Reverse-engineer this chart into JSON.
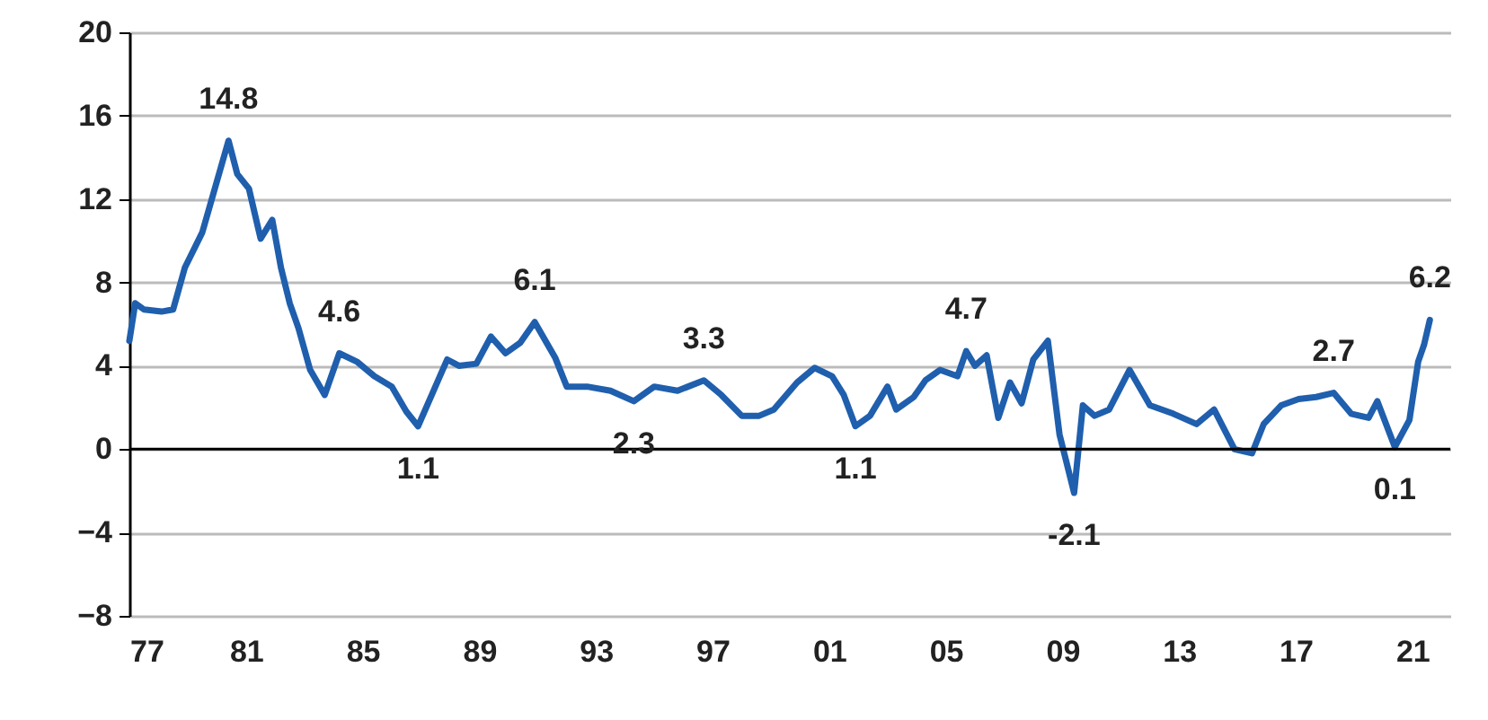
{
  "chart_data": {
    "type": "line",
    "x": [
      1977.0,
      1977.2,
      1977.5,
      1978.1,
      1978.5,
      1978.9,
      1979.5,
      1980.4,
      1980.7,
      1981.1,
      1981.5,
      1981.9,
      1982.2,
      1982.5,
      1982.8,
      1983.2,
      1983.7,
      1984.2,
      1984.8,
      1985.4,
      1986.0,
      1986.5,
      1986.9,
      1987.4,
      1987.9,
      1988.3,
      1988.9,
      1989.4,
      1989.9,
      1990.4,
      1990.9,
      1991.6,
      1992.0,
      1992.7,
      1993.5,
      1994.3,
      1995.0,
      1995.8,
      1996.7,
      1997.3,
      1998.0,
      1998.6,
      1999.1,
      1999.9,
      2000.5,
      2001.1,
      2001.5,
      2001.9,
      2002.4,
      2003.0,
      2003.3,
      2003.9,
      2004.3,
      2004.8,
      2005.4,
      2005.7,
      2006.0,
      2006.4,
      2006.8,
      2007.2,
      2007.6,
      2008.0,
      2008.5,
      2008.9,
      2009.4,
      2009.7,
      2010.1,
      2010.6,
      2011.3,
      2012.0,
      2012.8,
      2013.6,
      2014.2,
      2014.9,
      2015.5,
      2015.9,
      2016.5,
      2017.1,
      2017.7,
      2018.3,
      2018.9,
      2019.5,
      2019.8,
      2020.4,
      2020.9,
      2021.2,
      2021.4,
      2021.6
    ],
    "series": [
      {
        "color": "#1f5fad",
        "values": [
          5.2,
          7.0,
          6.7,
          6.6,
          6.7,
          8.7,
          10.4,
          14.8,
          13.2,
          12.5,
          10.1,
          11.0,
          8.7,
          7.0,
          5.8,
          3.8,
          2.6,
          4.6,
          4.2,
          3.5,
          3.0,
          1.8,
          1.1,
          2.7,
          4.3,
          4.0,
          4.1,
          5.4,
          4.6,
          5.1,
          6.1,
          4.4,
          3.0,
          3.0,
          2.8,
          2.3,
          3.0,
          2.8,
          3.3,
          2.6,
          1.6,
          1.6,
          1.9,
          3.2,
          3.9,
          3.5,
          2.6,
          1.1,
          1.6,
          3.0,
          1.9,
          2.5,
          3.3,
          3.8,
          3.5,
          4.7,
          4.0,
          4.5,
          1.5,
          3.2,
          2.2,
          4.3,
          5.2,
          0.7,
          -2.1,
          2.1,
          1.6,
          1.9,
          3.8,
          2.1,
          1.7,
          1.2,
          1.9,
          0.0,
          -0.2,
          1.2,
          2.1,
          2.4,
          2.5,
          2.7,
          1.7,
          1.5,
          2.3,
          0.1,
          1.4,
          4.2,
          5.0,
          6.2
        ]
      }
    ],
    "xlim": [
      1977,
      2022.3
    ],
    "xticks": [
      {
        "value": 1977,
        "label": "77"
      },
      {
        "value": 1981,
        "label": "81"
      },
      {
        "value": 1985,
        "label": "85"
      },
      {
        "value": 1989,
        "label": "89"
      },
      {
        "value": 1993,
        "label": "93"
      },
      {
        "value": 1997,
        "label": "97"
      },
      {
        "value": 2001,
        "label": "01"
      },
      {
        "value": 2005,
        "label": "05"
      },
      {
        "value": 2009,
        "label": "09"
      },
      {
        "value": 2013,
        "label": "13"
      },
      {
        "value": 2017,
        "label": "17"
      },
      {
        "value": 2021,
        "label": "21"
      }
    ],
    "ylim": [
      -8,
      20
    ],
    "yticks": [
      -8,
      -4,
      0,
      4,
      8,
      12,
      16,
      20
    ],
    "grid": "y",
    "ref_lines": [
      {
        "axis": "y",
        "value": 0,
        "color": "#000000"
      }
    ],
    "annotations": [
      {
        "text": "14.8",
        "x": 1980.4,
        "y": 14.8
      },
      {
        "text": "4.6",
        "x": 1984.2,
        "y": 4.6
      },
      {
        "text": "1.1",
        "x": 1986.9,
        "y": 1.1
      },
      {
        "text": "6.1",
        "x": 1990.9,
        "y": 6.1
      },
      {
        "text": "2.3",
        "x": 1994.3,
        "y": 2.3
      },
      {
        "text": "3.3",
        "x": 1996.7,
        "y": 3.3
      },
      {
        "text": "1.1",
        "x": 2001.9,
        "y": 1.1
      },
      {
        "text": "4.7",
        "x": 2005.7,
        "y": 4.7
      },
      {
        "text": "-2.1",
        "x": 2009.4,
        "y": -2.1
      },
      {
        "text": "2.7",
        "x": 2018.3,
        "y": 2.7
      },
      {
        "text": "0.1",
        "x": 2020.4,
        "y": 0.1
      },
      {
        "text": "6.2",
        "x": 2021.6,
        "y": 6.2
      }
    ]
  }
}
